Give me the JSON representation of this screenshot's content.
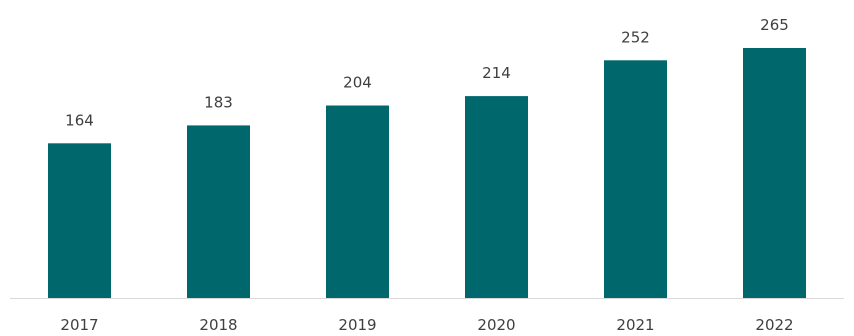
{
  "chart_data": {
    "type": "bar",
    "categories": [
      "2017",
      "2018",
      "2019",
      "2020",
      "2021",
      "2022"
    ],
    "values": [
      164,
      183,
      204,
      214,
      252,
      265
    ],
    "value_labels": [
      "164",
      "183",
      "204",
      "214",
      "252",
      "265"
    ],
    "title": "",
    "xlabel": "",
    "ylabel": "",
    "ylim": [
      0,
      280
    ],
    "grid": false,
    "legend": "none",
    "colors": {
      "bar": "#00686C",
      "axis": "#D9D9D9",
      "text": "#404040"
    }
  }
}
